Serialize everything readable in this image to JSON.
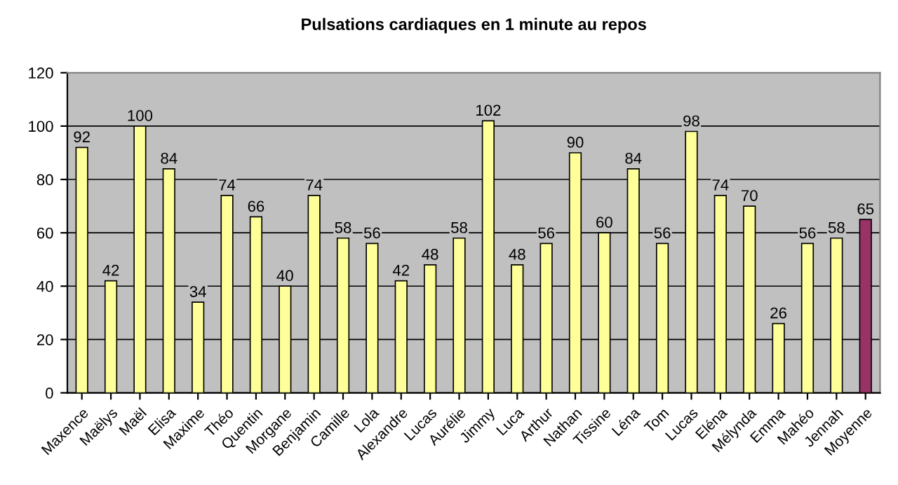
{
  "chart_data": {
    "type": "bar",
    "title": "Pulsations cardiaques en 1 minute au repos",
    "categories": [
      "Maxence",
      "Maëlys",
      "Maël",
      "Elisa",
      "Maxime",
      "Théo",
      "Quentin",
      "Morgane",
      "Benjamin",
      "Camille",
      "Lola",
      "Alexandre",
      "Lucas",
      "Aurélie",
      "Jimmy",
      "Luca",
      "Arthur",
      "Nathan",
      "Tissine",
      "Léna",
      "Tom",
      "Lucas",
      "Eléna",
      "Mélynda",
      "Emma",
      "Mahéo",
      "Jennah",
      "Moyenne"
    ],
    "values": [
      92,
      42,
      100,
      84,
      34,
      74,
      66,
      40,
      74,
      58,
      56,
      42,
      48,
      58,
      102,
      48,
      56,
      90,
      60,
      84,
      56,
      98,
      74,
      70,
      26,
      56,
      58,
      65
    ],
    "colors": [
      "#ffff99",
      "#ffff99",
      "#ffff99",
      "#ffff99",
      "#ffff99",
      "#ffff99",
      "#ffff99",
      "#ffff99",
      "#ffff99",
      "#ffff99",
      "#ffff99",
      "#ffff99",
      "#ffff99",
      "#ffff99",
      "#ffff99",
      "#ffff99",
      "#ffff99",
      "#ffff99",
      "#ffff99",
      "#ffff99",
      "#ffff99",
      "#ffff99",
      "#ffff99",
      "#ffff99",
      "#ffff99",
      "#ffff99",
      "#ffff99",
      "#993366"
    ],
    "ylim": [
      0,
      120
    ],
    "yticks": [
      0,
      20,
      40,
      60,
      80,
      100,
      120
    ],
    "grid": "y",
    "data_labels": true,
    "legend": false
  }
}
